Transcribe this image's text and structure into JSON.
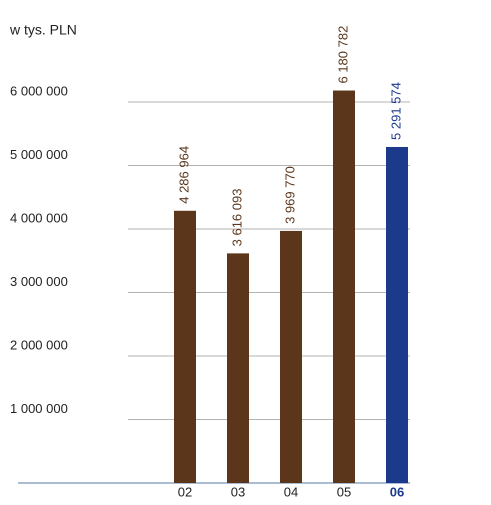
{
  "chart_data": {
    "type": "bar",
    "y_label": "w tys. PLN",
    "categories": [
      "02",
      "03",
      "04",
      "05",
      "06"
    ],
    "values": [
      4286964,
      3616093,
      3969770,
      6180782,
      5291574
    ],
    "value_labels": [
      "4 286 964",
      "3 616 093",
      "3 969 770",
      "6 180 782",
      "5 291 574"
    ],
    "colors": [
      "#5b361b",
      "#5b361b",
      "#5b361b",
      "#5b361b",
      "#1b3a8c"
    ],
    "highlight_index": 4,
    "ylim": [
      0,
      7000000
    ],
    "yticks": [
      {
        "value": 1000000,
        "label": "1 000 000"
      },
      {
        "value": 2000000,
        "label": "2 000 000"
      },
      {
        "value": 3000000,
        "label": "3 000 000"
      },
      {
        "value": 4000000,
        "label": "4 000 000"
      },
      {
        "value": 5000000,
        "label": "5 000 000"
      },
      {
        "value": 6000000,
        "label": "6 000 000"
      }
    ],
    "grid": true
  }
}
